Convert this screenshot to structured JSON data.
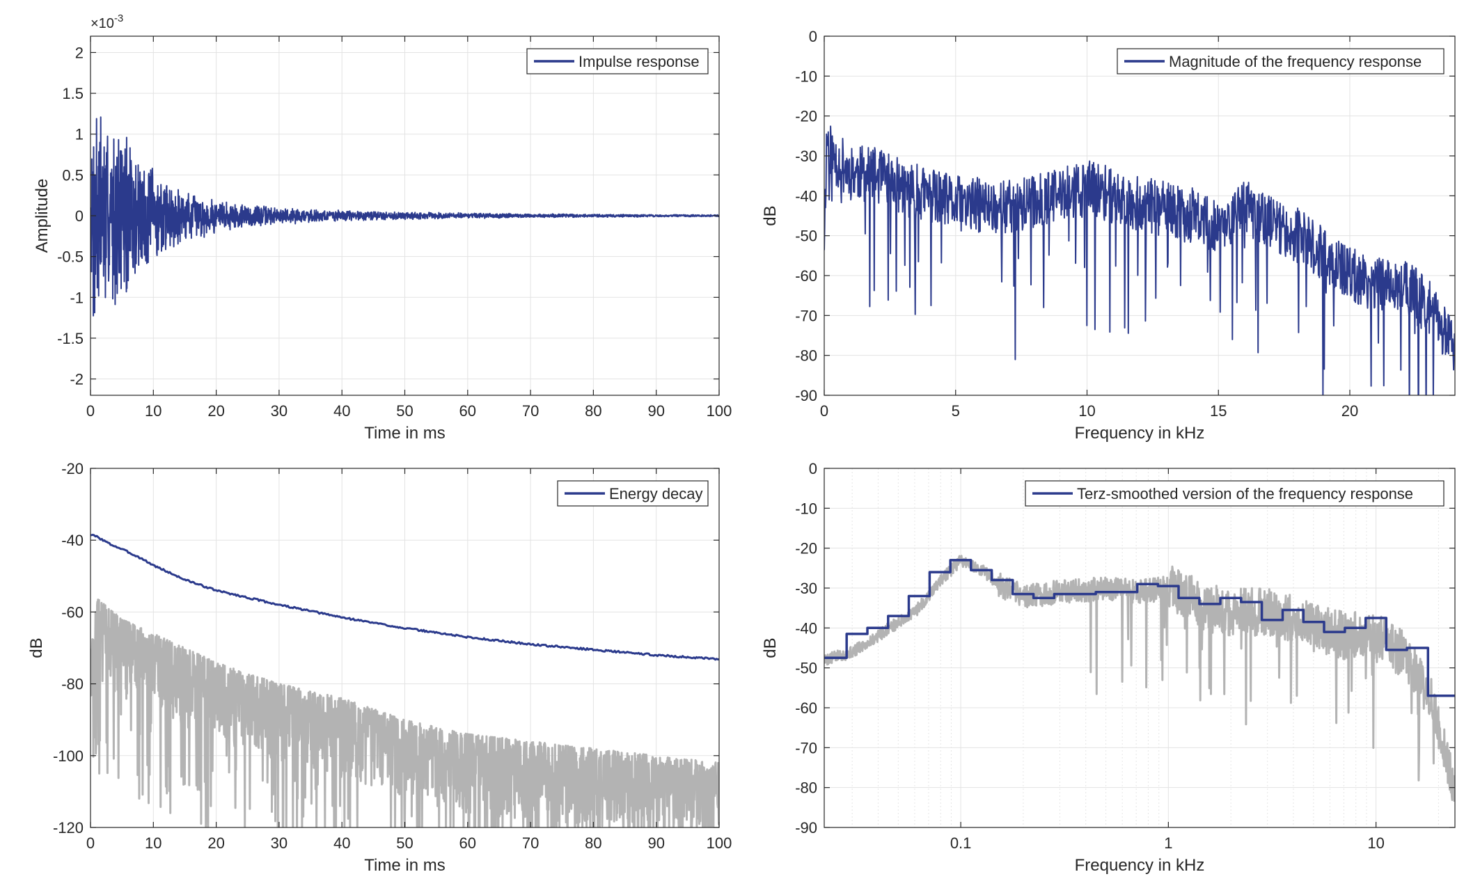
{
  "chart_data": [
    {
      "type": "line",
      "title": "",
      "xlabel": "Time in ms",
      "ylabel": "Amplitude",
      "exponent_label": "×10",
      "exponent_power": "-3",
      "xlim": [
        0,
        100
      ],
      "ylim": [
        -2.2,
        2.2
      ],
      "xticks": [
        0,
        10,
        20,
        30,
        40,
        50,
        60,
        70,
        80,
        90,
        100
      ],
      "xtick_labels": [
        "0",
        "10",
        "20",
        "30",
        "40",
        "50",
        "60",
        "70",
        "80",
        "90",
        "100"
      ],
      "yticks": [
        2,
        1.5,
        1,
        0.5,
        0,
        -0.5,
        -1,
        -1.5,
        -2
      ],
      "ytick_labels": [
        "2",
        "1.5",
        "1",
        "0.5",
        "0",
        "-0.5",
        "-1",
        "-1.5",
        "-2"
      ],
      "grid": true,
      "legend_position": "top-right",
      "series": [
        {
          "name": "Impulse response",
          "color": "#2b3a8c",
          "kind": "decaying-noise",
          "x": [
            0,
            0.5,
            1,
            2,
            4,
            5,
            8,
            12,
            16,
            20,
            25,
            30,
            40,
            50,
            60,
            70,
            80,
            90,
            100
          ],
          "envelope": [
            0.3,
            1.8,
            1.9,
            1.3,
            1.1,
            1.25,
            0.85,
            0.45,
            0.32,
            0.22,
            0.16,
            0.11,
            0.07,
            0.05,
            0.035,
            0.025,
            0.02,
            0.015,
            0.012
          ],
          "seed": 7
        }
      ]
    },
    {
      "type": "line",
      "title": "",
      "xlabel": "Frequency in kHz",
      "ylabel": "dB",
      "xlim": [
        0,
        24
      ],
      "ylim": [
        -90,
        0
      ],
      "xticks": [
        0,
        5,
        10,
        15,
        20
      ],
      "xtick_labels": [
        "0",
        "5",
        "10",
        "15",
        "20"
      ],
      "yticks": [
        0,
        -10,
        -20,
        -30,
        -40,
        -50,
        -60,
        -70,
        -80,
        -90
      ],
      "ytick_labels": [
        "0",
        "-10",
        "-20",
        "-30",
        "-40",
        "-50",
        "-60",
        "-70",
        "-80",
        "-90"
      ],
      "grid": true,
      "legend_position": "top-right",
      "series": [
        {
          "name": "Magnitude of the frequency response",
          "color": "#2b3a8c",
          "kind": "spectrum",
          "x": [
            0,
            0.1,
            0.3,
            1,
            2,
            3,
            5,
            7,
            9,
            10,
            12,
            14,
            15,
            16,
            18,
            19,
            20,
            21,
            22,
            23,
            24
          ],
          "baseline": [
            -50,
            -25,
            -30,
            -34,
            -35,
            -38,
            -42,
            -43,
            -40,
            -38,
            -42,
            -45,
            -48,
            -43,
            -50,
            -55,
            -60,
            -62,
            -62,
            -68,
            -78
          ],
          "seed": 11
        }
      ]
    },
    {
      "type": "line",
      "title": "",
      "xlabel": "Time in ms",
      "ylabel": "dB",
      "xlim": [
        0,
        100
      ],
      "ylim": [
        -120,
        -20
      ],
      "xticks": [
        0,
        10,
        20,
        30,
        40,
        50,
        60,
        70,
        80,
        90,
        100
      ],
      "xtick_labels": [
        "0",
        "10",
        "20",
        "30",
        "40",
        "50",
        "60",
        "70",
        "80",
        "90",
        "100"
      ],
      "yticks": [
        -20,
        -40,
        -60,
        -80,
        -100,
        -120
      ],
      "ytick_labels": [
        "-20",
        "-40",
        "-60",
        "-80",
        "-100",
        "-120"
      ],
      "grid": true,
      "legend_position": "top-right",
      "series": [
        {
          "name": "Energy decay",
          "color": "#2b3a8c",
          "kind": "smooth",
          "x": [
            0,
            1,
            3,
            5,
            8,
            10,
            15,
            20,
            25,
            30,
            40,
            50,
            60,
            70,
            80,
            90,
            100
          ],
          "y": [
            -38.5,
            -39,
            -41,
            -42.5,
            -45,
            -47,
            -51,
            -54,
            -56,
            -58,
            -61.5,
            -64.5,
            -67,
            -69,
            -70.5,
            -72,
            -73.2
          ]
        },
        {
          "name": "",
          "color": "#b3b3b3",
          "kind": "decaying-noise-db",
          "x": [
            0,
            1,
            5,
            10,
            20,
            30,
            40,
            50,
            60,
            70,
            80,
            90,
            100
          ],
          "upper": [
            -72,
            -56,
            -62,
            -66,
            -74,
            -80,
            -84,
            -90,
            -94,
            -96,
            -98,
            -100,
            -102
          ],
          "floor": -120,
          "seed": 23
        }
      ]
    },
    {
      "type": "line",
      "title": "",
      "xlabel": "Frequency in kHz",
      "ylabel": "dB",
      "xscale": "log",
      "xlim": [
        0.022,
        24
      ],
      "ylim": [
        -90,
        0
      ],
      "xticks": [
        0.1,
        1,
        10
      ],
      "xtick_labels": [
        "0.1",
        "1",
        "10"
      ],
      "yticks": [
        0,
        -10,
        -20,
        -30,
        -40,
        -50,
        -60,
        -70,
        -80,
        -90
      ],
      "ytick_labels": [
        "0",
        "-10",
        "-20",
        "-30",
        "-40",
        "-50",
        "-60",
        "-70",
        "-80",
        "-90"
      ],
      "grid": true,
      "legend_position": "top-right",
      "series": [
        {
          "name": "",
          "color": "#b3b3b3",
          "kind": "log-spectrum",
          "x": [
            0.022,
            0.03,
            0.045,
            0.06,
            0.08,
            0.1,
            0.13,
            0.16,
            0.2,
            0.3,
            0.5,
            0.7,
            1,
            1.5,
            2,
            3,
            5,
            7,
            10,
            13,
            16,
            19,
            22,
            24
          ],
          "baseline": [
            -48,
            -46,
            -40,
            -36,
            -28,
            -23,
            -26,
            -30,
            -32,
            -31,
            -30,
            -31,
            -30,
            -35,
            -36,
            -36,
            -40,
            -42,
            -42,
            -46,
            -52,
            -60,
            -72,
            -85
          ],
          "seed": 5
        },
        {
          "name": "Terz-smoothed version of the frequency response",
          "color": "#2b3a8c",
          "kind": "step",
          "edges": [
            0.022,
            0.0282,
            0.0355,
            0.0447,
            0.0562,
            0.0708,
            0.0891,
            0.112,
            0.141,
            0.178,
            0.224,
            0.282,
            0.355,
            0.447,
            0.562,
            0.708,
            0.891,
            1.12,
            1.41,
            1.78,
            2.24,
            2.82,
            3.55,
            4.47,
            5.62,
            7.08,
            8.91,
            11.2,
            14.1,
            17.8,
            24
          ],
          "values": [
            -47.5,
            -41.5,
            -40,
            -37,
            -32,
            -26,
            -23,
            -25.5,
            -28,
            -31.5,
            -32.5,
            -31.5,
            -31.5,
            -31,
            -31,
            -29,
            -29.5,
            -32.5,
            -34,
            -32.5,
            -33.5,
            -38,
            -35.5,
            -38.5,
            -41,
            -40,
            -37.5,
            -45.5,
            -45,
            -57,
            -57
          ]
        }
      ]
    }
  ]
}
